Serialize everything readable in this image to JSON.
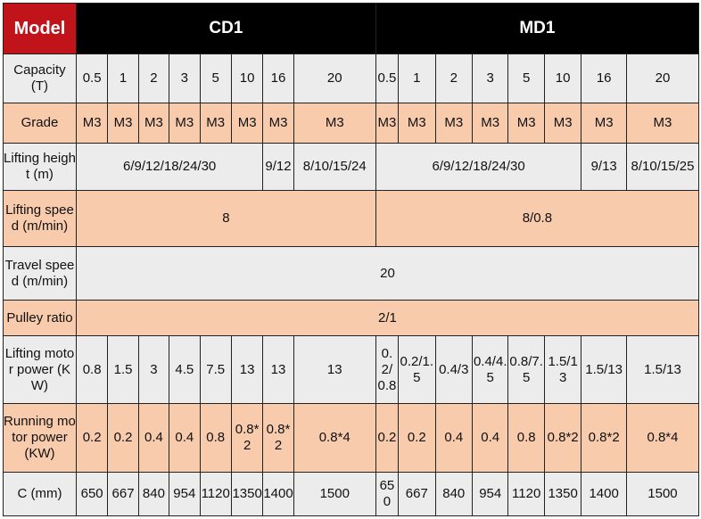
{
  "header": {
    "model": "Model",
    "cd1": "CD1",
    "md1": "MD1"
  },
  "rows": {
    "capacity": {
      "label": "Capacity (T)",
      "values": [
        "0.5",
        "1",
        "2",
        "3",
        "5",
        "10",
        "16",
        "20",
        "0.5",
        "1",
        "2",
        "3",
        "5",
        "10",
        "16",
        "20"
      ]
    },
    "grade": {
      "label": "Grade",
      "values": [
        "M3",
        "M3",
        "M3",
        "M3",
        "M3",
        "M3",
        "M3",
        "M3",
        "M3",
        "M3",
        "M3",
        "M3",
        "M3",
        "M3",
        "M3",
        "M3"
      ]
    },
    "lifting_height": {
      "label": "Lifting height (m)",
      "values": [
        "6/9/12/18/24/30",
        "9/12",
        "8/10/15/24",
        "6/9/12/18/24/30",
        "9/13",
        "8/10/15/25"
      ]
    },
    "lifting_speed": {
      "label": "Lifting speed (m/min)",
      "values": [
        "8",
        "8/0.8"
      ]
    },
    "travel_speed": {
      "label": "Travel speed (m/min)",
      "value": "20"
    },
    "pulley_ratio": {
      "label": "Pulley ratio",
      "value": "2/1"
    },
    "lifting_motor": {
      "label": "Lifting motor power (KW)",
      "values": [
        "0.8",
        "1.5",
        "3",
        "4.5",
        "7.5",
        "13",
        "13",
        "13",
        "0.2/0.8",
        "0.2/1.5",
        "0.4/3",
        "0.4/4.5",
        "0.8/7.5",
        "1.5/13",
        "1.5/13",
        "1.5/13"
      ]
    },
    "running_motor": {
      "label": "Running motor power (KW)",
      "values": [
        "0.2",
        "0.2",
        "0.4",
        "0.4",
        "0.8",
        "0.8*2",
        "0.8*2",
        "0.8*4",
        "0.2",
        "0.2",
        "0.4",
        "0.4",
        "0.8",
        "0.8*2",
        "0.8*2",
        "0.8*4"
      ]
    },
    "c": {
      "label": "C (mm)",
      "values": [
        "650",
        "667",
        "840",
        "954",
        "1120",
        "1350",
        "1400",
        "1500",
        "650",
        "667",
        "840",
        "954",
        "1120",
        "1350",
        "1400",
        "1500"
      ]
    }
  }
}
